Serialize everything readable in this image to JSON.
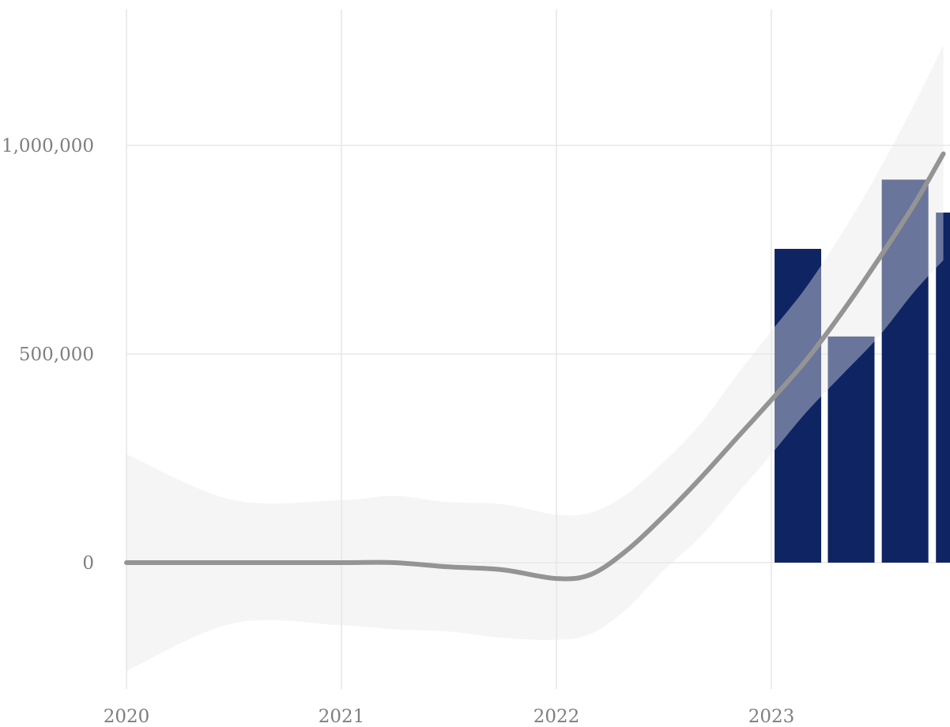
{
  "chart_data": {
    "type": "bar",
    "title": "",
    "xlabel": "",
    "ylabel": "",
    "x_ticks": [
      {
        "value": "2020-01-01",
        "label": "2020"
      },
      {
        "value": "2021-01-01",
        "label": "2021"
      },
      {
        "value": "2022-01-01",
        "label": "2022"
      },
      {
        "value": "2023-01-01",
        "label": "2023"
      }
    ],
    "y_ticks": [
      {
        "value": 0,
        "label": "0"
      },
      {
        "value": 500000,
        "label": "500,000"
      },
      {
        "value": 1000000,
        "label": "1,000,000"
      }
    ],
    "xlim": [
      "2020-01-01",
      "2023-12-31"
    ],
    "ylim": [
      -300000,
      1320000
    ],
    "grid": true,
    "legend": "none",
    "series": [
      {
        "type": "bar",
        "color": "#0f2463",
        "x": [
          "2023-01",
          "2023-04",
          "2023-07",
          "2023-10"
        ],
        "values": [
          752000,
          542000,
          918000,
          839000
        ]
      },
      {
        "type": "smooth-line",
        "color": "#949494",
        "x": [
          "2020-01-01",
          "2020-07-01",
          "2021-01-01",
          "2021-04-01",
          "2021-07-01",
          "2021-10-01",
          "2022-01-01",
          "2022-03-01",
          "2022-05-01",
          "2022-07-01",
          "2022-09-01",
          "2022-11-01",
          "2023-01-01",
          "2023-03-01",
          "2023-05-01",
          "2023-07-01",
          "2023-09-01",
          "2023-10-20"
        ],
        "values": [
          0,
          0,
          0,
          0,
          -10000,
          -17000,
          -38000,
          -28000,
          30000,
          110000,
          200000,
          295000,
          390000,
          485000,
          600000,
          725000,
          860000,
          980000
        ],
        "ci_low": [
          -260000,
          -145000,
          -150000,
          -160000,
          -165000,
          -180000,
          -185000,
          -170000,
          -110000,
          -20000,
          60000,
          160000,
          260000,
          360000,
          450000,
          540000,
          650000,
          725000
        ],
        "ci_high": [
          260000,
          150000,
          150000,
          160000,
          145000,
          140000,
          115000,
          120000,
          165000,
          240000,
          330000,
          445000,
          555000,
          660000,
          790000,
          935000,
          1100000,
          1240000
        ]
      }
    ]
  }
}
